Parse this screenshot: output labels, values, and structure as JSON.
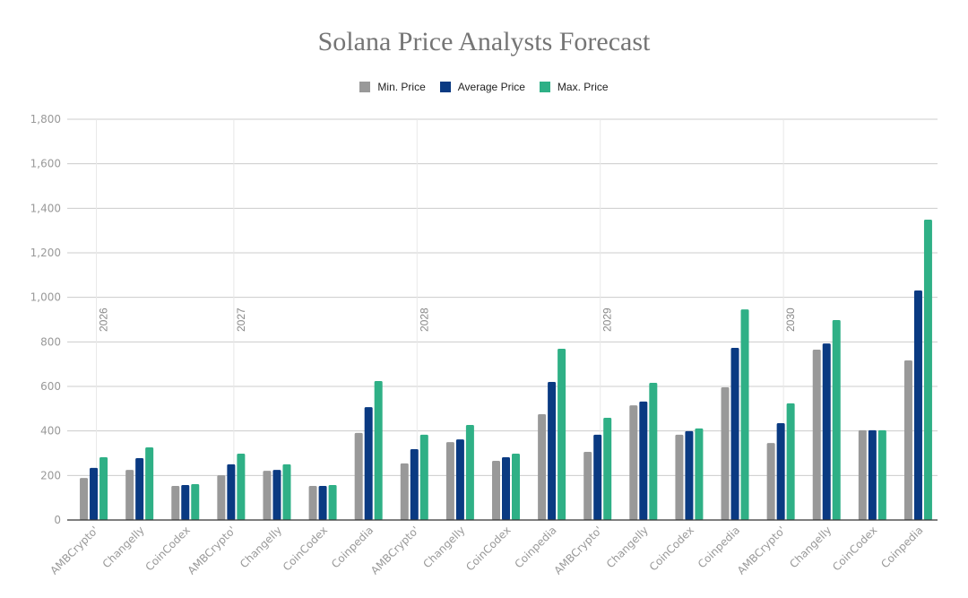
{
  "chart_data": {
    "type": "bar",
    "title": "Solana Price Analysts Forecast",
    "xlabel": "",
    "ylabel": "",
    "ylim": [
      0,
      1800
    ],
    "yticks": [
      "0",
      "200",
      "400",
      "600",
      "800",
      "1,000",
      "1,200",
      "1,400",
      "1,600",
      "1,800"
    ],
    "grid": true,
    "legend_placement": "top",
    "year_groups": [
      {
        "label": "2026",
        "start": 0
      },
      {
        "label": "2027",
        "start": 3
      },
      {
        "label": "2028",
        "start": 7
      },
      {
        "label": "2029",
        "start": 11
      },
      {
        "label": "2030",
        "start": 15
      }
    ],
    "categories": [
      "AMBCrypto'",
      "Changelly",
      "CoinCodex",
      "AMBCrypto'",
      "Changelly",
      "CoinCodex",
      "Coinpedia",
      "AMBCrypto'",
      "Changelly",
      "CoinCodex",
      "Coinpedia",
      "AMBCrypto'",
      "Changelly",
      "CoinCodex",
      "Coinpedia",
      "AMBCrypto'",
      "Changelly",
      "CoinCodex",
      "Coinpedia"
    ],
    "series": [
      {
        "name": "Min. Price",
        "color": "#999999",
        "values": [
          189,
          225,
          153,
          201,
          221,
          153,
          391,
          254,
          350,
          266,
          475,
          306,
          515,
          383,
          596,
          346,
          765,
          403,
          717
        ]
      },
      {
        "name": "Average Price",
        "color": "#0a3a82",
        "values": [
          234,
          278,
          157,
          250,
          225,
          153,
          507,
          318,
          362,
          282,
          620,
          383,
          532,
          399,
          773,
          435,
          793,
          403,
          1031
        ]
      },
      {
        "name": "Max. Price",
        "color": "#2fb086",
        "values": [
          282,
          326,
          161,
          298,
          250,
          157,
          624,
          383,
          427,
          298,
          769,
          459,
          616,
          411,
          946,
          524,
          898,
          403,
          1349
        ]
      }
    ]
  }
}
